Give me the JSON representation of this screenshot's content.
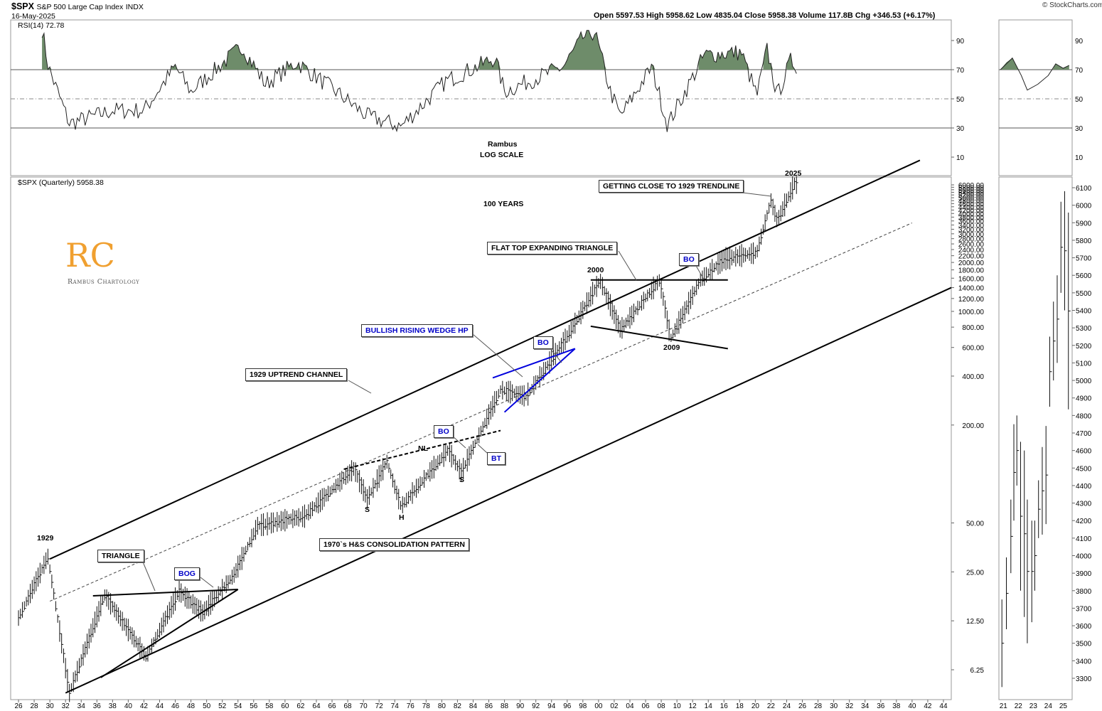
{
  "header": {
    "symbol": "$SPX",
    "name": "S&P 500 Large Cap Index",
    "exchange": "INDX",
    "date": "16-May-2025",
    "watermark": "© StockCharts.com",
    "ohlc_text": "Open 5597.53  High 5958.62  Low 4835.04  Close 5958.38  Volume 117.8B  Chg +346.53 (+6.17%)"
  },
  "rsi_panel": {
    "legend": "RSI(14) 72.78",
    "ticks": [
      "90",
      "70",
      "50",
      "30",
      "10"
    ],
    "note_title": "Rambus",
    "note_sub": "LOG SCALE",
    "fill_color": "#6e8c6a"
  },
  "price_panel": {
    "legend": "$SPX (Quarterly) 5958.38",
    "ticks": [
      "6.25",
      "12.50",
      "25.00",
      "50.00",
      "200.00",
      "400.00",
      "600.00",
      "800.00",
      "1000.00",
      "1200.00",
      "1400.00",
      "1600.00",
      "1800.00",
      "2000.00",
      "2200.00",
      "2400.00",
      "2600.00",
      "2800.00",
      "3000.00",
      "3200.00",
      "3400.00",
      "3600.00",
      "3800.00",
      "4000.00",
      "4200.00",
      "4400.00",
      "4600.00",
      "4800.00",
      "5000.00",
      "5200.00",
      "5400.00",
      "5600.00",
      "5800.00",
      "6000.00"
    ],
    "x_ticks": [
      "26",
      "28",
      "30",
      "32",
      "34",
      "36",
      "38",
      "40",
      "42",
      "44",
      "46",
      "48",
      "50",
      "52",
      "54",
      "56",
      "58",
      "60",
      "62",
      "64",
      "66",
      "68",
      "70",
      "72",
      "74",
      "76",
      "78",
      "80",
      "82",
      "84",
      "86",
      "88",
      "90",
      "92",
      "94",
      "96",
      "98",
      "00",
      "02",
      "04",
      "06",
      "08",
      "10",
      "12",
      "14",
      "16",
      "18",
      "20",
      "22",
      "24",
      "26",
      "28",
      "30",
      "32",
      "34",
      "36",
      "38",
      "40",
      "42",
      "44"
    ]
  },
  "zoom_panel": {
    "rsi_ticks": [
      "90",
      "70",
      "50",
      "30",
      "10"
    ],
    "price_ticks": [
      "6100",
      "6000",
      "5900",
      "5800",
      "5700",
      "5600",
      "5500",
      "5400",
      "5300",
      "5200",
      "5100",
      "5000",
      "4900",
      "4800",
      "4700",
      "4600",
      "4500",
      "4400",
      "4300",
      "4200",
      "4100",
      "4000",
      "3900",
      "3800",
      "3700",
      "3600",
      "3500",
      "3400",
      "3300"
    ],
    "x_ticks": [
      "21",
      "22",
      "23",
      "24",
      "25"
    ]
  },
  "annotations": {
    "hundred_years": "100 YEARS",
    "y1929": "1929",
    "y2000": "2000",
    "y2009": "2009",
    "y2025": "2025",
    "nl": "NL",
    "s1": "S",
    "h": "H",
    "s2": "S",
    "getting_close": "GETTING CLOSE TO 1929 TRENDLINE",
    "flat_top": "FLAT TOP EXPANDING TRIANGLE",
    "bo_2013": "BO",
    "bullish_wedge": "BULLISH RISING WEDGE HP",
    "bo_1995": "BO",
    "uptrend_channel": "1929 UPTREND CHANNEL",
    "bo_1982": "BO",
    "bt_1984": "BT",
    "triangle": "TRIANGLE",
    "bog": "BOG",
    "hs_pattern": "1970`s H&S CONSOLIDATION PATTERN"
  },
  "logo": {
    "letters": "RC",
    "text": "Rambus Chartology"
  },
  "chart_data": {
    "type": "bar",
    "title": "$SPX S&P 500 Large Cap Index",
    "scale": "log",
    "period": "Quarterly",
    "x_range": [
      1925,
      2045
    ],
    "y_range": [
      4.5,
      6500
    ],
    "series": [
      {
        "name": "$SPX (Quarterly)",
        "key_points": [
          {
            "x": 1926.0,
            "y": 13
          },
          {
            "x": 1929.75,
            "y": 31
          },
          {
            "x": 1932.5,
            "y": 4.5
          },
          {
            "x": 1937.0,
            "y": 18
          },
          {
            "x": 1942.3,
            "y": 7.5
          },
          {
            "x": 1946.5,
            "y": 19
          },
          {
            "x": 1949.5,
            "y": 14
          },
          {
            "x": 1953.5,
            "y": 24
          },
          {
            "x": 1956.5,
            "y": 48
          },
          {
            "x": 1962.5,
            "y": 55
          },
          {
            "x": 1968.8,
            "y": 108
          },
          {
            "x": 1970.5,
            "y": 70
          },
          {
            "x": 1973.0,
            "y": 119
          },
          {
            "x": 1974.8,
            "y": 63
          },
          {
            "x": 1980.8,
            "y": 140
          },
          {
            "x": 1982.5,
            "y": 102
          },
          {
            "x": 1987.5,
            "y": 330
          },
          {
            "x": 1990.8,
            "y": 300
          },
          {
            "x": 1996.0,
            "y": 700
          },
          {
            "x": 2000.2,
            "y": 1550
          },
          {
            "x": 2002.8,
            "y": 770
          },
          {
            "x": 2007.8,
            "y": 1560
          },
          {
            "x": 2009.2,
            "y": 680
          },
          {
            "x": 2013.0,
            "y": 1560
          },
          {
            "x": 2016.0,
            "y": 2100
          },
          {
            "x": 2020.2,
            "y": 2300
          },
          {
            "x": 2022.0,
            "y": 4800
          },
          {
            "x": 2022.8,
            "y": 3600
          },
          {
            "x": 2025.0,
            "y": 6100
          },
          {
            "x": 2025.3,
            "y": 5958.38
          }
        ]
      }
    ],
    "rsi": {
      "name": "RSI(14)",
      "last": 72.78,
      "overbought": 70,
      "oversold": 30,
      "mid": 50,
      "key_points": [
        {
          "x": 1929.0,
          "y": 98
        },
        {
          "x": 1929.8,
          "y": 72
        },
        {
          "x": 1932.5,
          "y": 33
        },
        {
          "x": 1938.0,
          "y": 42
        },
        {
          "x": 1942.0,
          "y": 42
        },
        {
          "x": 1946.0,
          "y": 72
        },
        {
          "x": 1948.0,
          "y": 55
        },
        {
          "x": 1954.5,
          "y": 86
        },
        {
          "x": 1957.5,
          "y": 60
        },
        {
          "x": 1961.5,
          "y": 75
        },
        {
          "x": 1966.5,
          "y": 55
        },
        {
          "x": 1970.5,
          "y": 38
        },
        {
          "x": 1974.8,
          "y": 31
        },
        {
          "x": 1980.5,
          "y": 62
        },
        {
          "x": 1986.8,
          "y": 78
        },
        {
          "x": 1988.0,
          "y": 55
        },
        {
          "x": 1995.5,
          "y": 72
        },
        {
          "x": 1998.0,
          "y": 92
        },
        {
          "x": 1999.5,
          "y": 96
        },
        {
          "x": 2001.5,
          "y": 55
        },
        {
          "x": 2002.8,
          "y": 38
        },
        {
          "x": 2006.8,
          "y": 72
        },
        {
          "x": 2008.8,
          "y": 32
        },
        {
          "x": 2013.5,
          "y": 80
        },
        {
          "x": 2018.2,
          "y": 82
        },
        {
          "x": 2020.2,
          "y": 52
        },
        {
          "x": 2021.5,
          "y": 84
        },
        {
          "x": 2022.8,
          "y": 52
        },
        {
          "x": 2024.5,
          "y": 76
        },
        {
          "x": 2025.3,
          "y": 72.78
        }
      ]
    },
    "trendlines": [
      {
        "name": "1929 UPTREND CHANNEL upper",
        "from": {
          "x": 1930.0,
          "y": 30
        },
        "to": {
          "x": 2041.0,
          "y": 8500
        }
      },
      {
        "name": "channel lower",
        "from": {
          "x": 1932.0,
          "y": 4.5
        },
        "to": {
          "x": 2045.0,
          "y": 1400
        }
      },
      {
        "name": "channel midline",
        "from": {
          "x": 1930.0,
          "y": 16.5
        },
        "to": {
          "x": 2040.0,
          "y": 3500
        }
      },
      {
        "name": "TRIANGLE top",
        "from": {
          "x": 1935.5,
          "y": 17.8
        },
        "to": {
          "x": 1954.0,
          "y": 19.5
        }
      },
      {
        "name": "TRIANGLE bottom",
        "from": {
          "x": 1936.5,
          "y": 5.6
        },
        "to": {
          "x": 1954.0,
          "y": 19.5
        }
      },
      {
        "name": "NL",
        "from": {
          "x": 1967.5,
          "y": 107
        },
        "to": {
          "x": 1987.5,
          "y": 185
        }
      },
      {
        "name": "wedge upper",
        "from": {
          "x": 1986.5,
          "y": 390
        },
        "to": {
          "x": 1997.0,
          "y": 590
        }
      },
      {
        "name": "wedge lower",
        "from": {
          "x": 1988.0,
          "y": 240
        },
        "to": {
          "x": 1997.0,
          "y": 590
        }
      },
      {
        "name": "flat top",
        "from": {
          "x": 1999.0,
          "y": 1560
        },
        "to": {
          "x": 2016.5,
          "y": 1560
        }
      },
      {
        "name": "expanding bottom",
        "from": {
          "x": 1999.0,
          "y": 810
        },
        "to": {
          "x": 2016.5,
          "y": 590
        }
      }
    ]
  }
}
